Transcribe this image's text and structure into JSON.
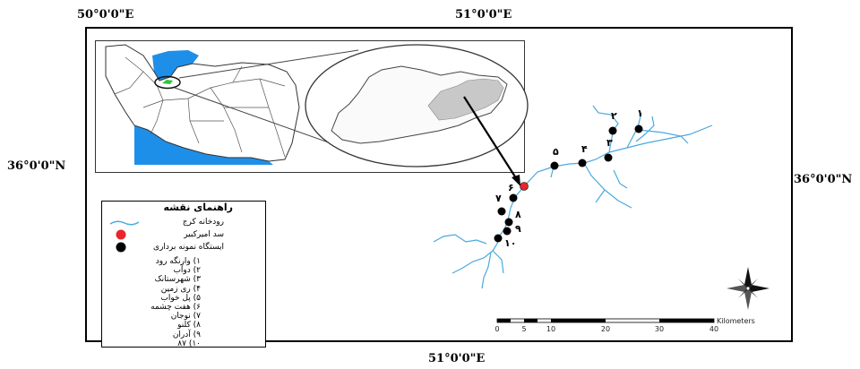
{
  "coords": {
    "top_left": "50°0'0\"E",
    "top_mid": "51°0'0\"E",
    "bottom_mid": "51°0'0\"E",
    "left": "36°0'0\"N",
    "right": "36°0'0\"N"
  },
  "legend": {
    "title": "راهنمای نقشه",
    "river": "رودخانه کرج",
    "dam": "سد امیرکبیر",
    "station": "ایستگاه نمونه برداری",
    "sites": [
      "۱) وارنگه رود",
      "۲) دوآب",
      "۳) شهرستانک",
      "۴) ری زمین",
      "۵) پل خواب",
      "۶) هفت چشمه",
      "۷) نوجان",
      "۸) کلنو",
      "۹) آدران",
      "۱۰) ۸۷"
    ]
  },
  "stations": [
    {
      "label": "۱"
    },
    {
      "label": "۲"
    },
    {
      "label": "۳"
    },
    {
      "label": "۴"
    },
    {
      "label": "۵"
    },
    {
      "label": "۶"
    },
    {
      "label": "۷"
    },
    {
      "label": "۸"
    },
    {
      "label": "۹"
    },
    {
      "label": "۱۰"
    }
  ],
  "scale": {
    "ticks": [
      "0",
      "5",
      "10",
      "20",
      "30",
      "40"
    ],
    "unit": "Kilometers"
  },
  "colors": {
    "water": "#1e8fe8",
    "river": "#4aa9e0",
    "dam": "#e8262b",
    "station": "#000000",
    "highlight": "#2fc43a",
    "watershed": "#c8c8c8"
  }
}
